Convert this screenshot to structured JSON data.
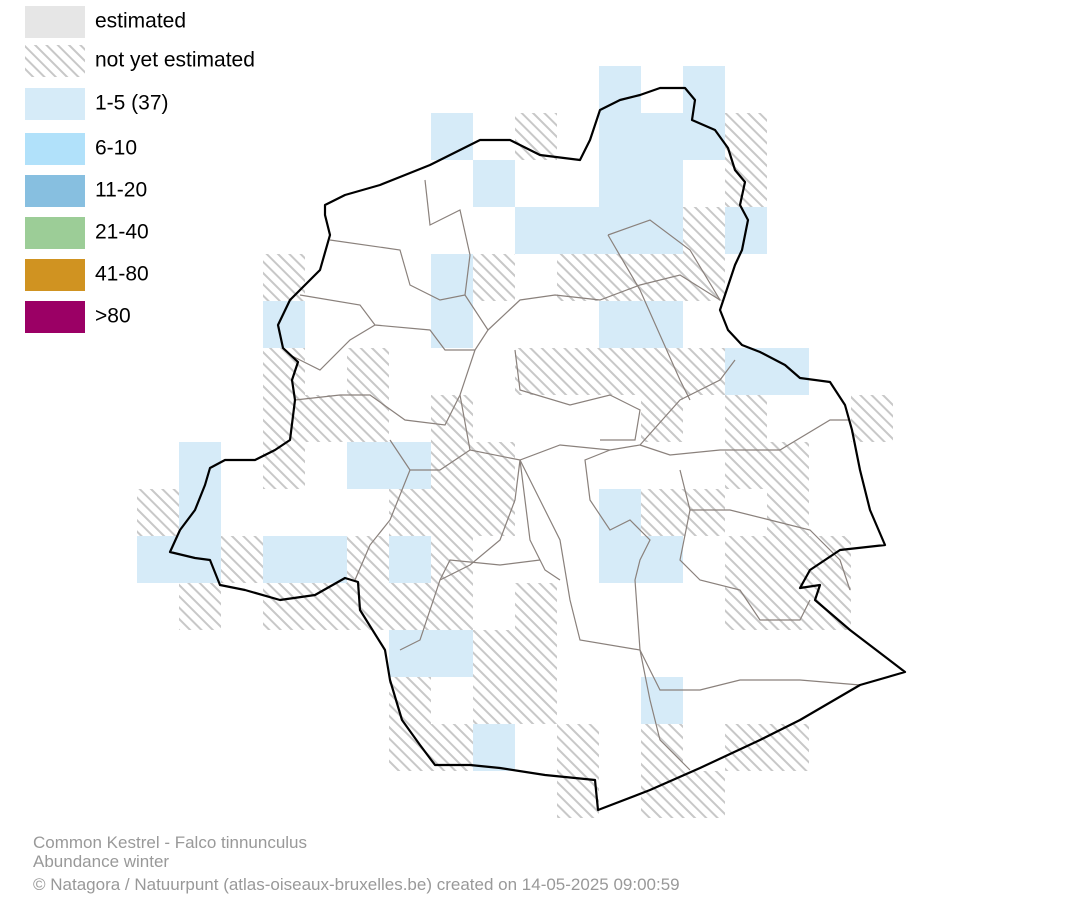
{
  "legend": [
    "estimated",
    "not yet estimated",
    "1-5 (37)",
    "6-10",
    "11-20",
    "21-40",
    "41-80",
    ">80"
  ],
  "footer": {
    "species": "Common Kestrel - Falco tinnunculus",
    "subtitle": "Abundance winter",
    "credit": "© Natagora / Natuurpunt (atlas-oiseaux-bruxelles.be) created on 14-05-2025 09:00:59"
  }
}
